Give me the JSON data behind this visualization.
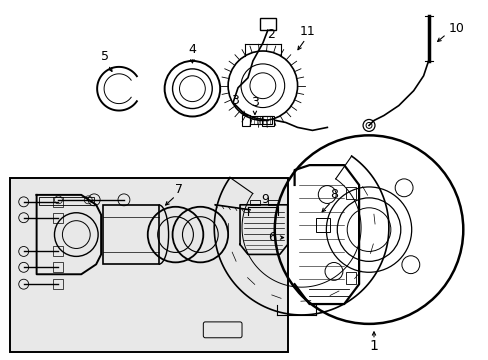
{
  "background_color": "#ffffff",
  "box_fill": "#e8e8e8",
  "line_color": "#000000",
  "figsize": [
    4.89,
    3.6
  ],
  "dpi": 100
}
